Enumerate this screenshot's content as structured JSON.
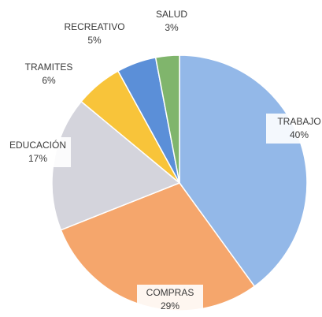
{
  "chart_data": {
    "type": "pie",
    "categories": [
      "TRABAJO",
      "COMPRAS",
      "EDUCACIÓN",
      "TRAMITES",
      "RECREATIVO",
      "SALUD"
    ],
    "values": [
      40,
      29,
      17,
      6,
      5,
      3
    ],
    "value_labels": [
      "40%",
      "29%",
      "17%",
      "6%",
      "5%",
      "3%"
    ],
    "colors": [
      "#93b8e8",
      "#f5a66c",
      "#d4d4dc",
      "#f8c43a",
      "#5b8fd8",
      "#80b56c"
    ]
  }
}
